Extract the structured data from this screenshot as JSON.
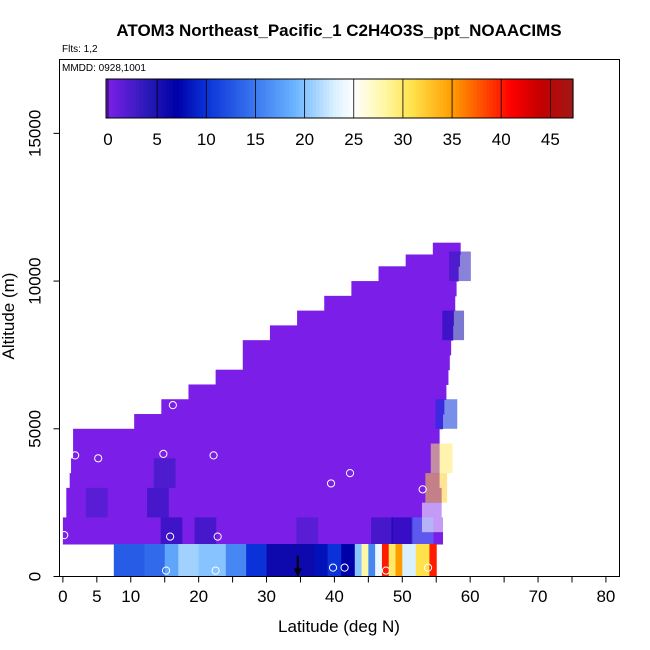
{
  "chart_data": {
    "type": "heatmap",
    "title": "ATOM3 Northeast_Pacific_1 C2H4O3S_ppt_NOAACIMS",
    "subtitle": "Flts: 1,2",
    "annotation": "MMDD: 0928,1001",
    "xlabel": "Latitude (deg N)",
    "ylabel": "Altitude (m)",
    "xlim": [
      -0.5,
      82
    ],
    "ylim": [
      0,
      17500
    ],
    "x_ticks": [
      0,
      5,
      10,
      20,
      30,
      40,
      50,
      60,
      70,
      80
    ],
    "y_ticks": [
      0,
      5000,
      10000,
      15000
    ],
    "grid": false,
    "colorbar": {
      "ticks": [
        0,
        5,
        10,
        15,
        20,
        25,
        30,
        35,
        40,
        45
      ],
      "range": [
        -0.2,
        47.3
      ],
      "placement": "top-inside",
      "stops": [
        {
          "value": 0,
          "color": "#7b1fe8"
        },
        {
          "value": 4,
          "color": "#2a1ab8"
        },
        {
          "value": 7,
          "color": "#0000a8"
        },
        {
          "value": 10,
          "color": "#0a32d8"
        },
        {
          "value": 15,
          "color": "#3b78f0"
        },
        {
          "value": 19,
          "color": "#6ab4ff"
        },
        {
          "value": 23,
          "color": "#d8f0ff"
        },
        {
          "value": 25,
          "color": "#ffffff"
        },
        {
          "value": 28,
          "color": "#fff8a8"
        },
        {
          "value": 31,
          "color": "#ffe14a"
        },
        {
          "value": 35,
          "color": "#ff9d00"
        },
        {
          "value": 38,
          "color": "#ff5000"
        },
        {
          "value": 41,
          "color": "#ff0000"
        },
        {
          "value": 44,
          "color": "#c40000"
        },
        {
          "value": 47.3,
          "color": "#a01818"
        }
      ]
    },
    "background_color": "#7b1fe8",
    "field_region": [
      {
        "alt": 1100,
        "lat_min": 0,
        "lat_max": 56
      },
      {
        "alt": 1500,
        "lat_min": 0,
        "lat_max": 56
      },
      {
        "alt": 2000,
        "lat_min": 0.5,
        "lat_max": 55.8
      },
      {
        "alt": 2500,
        "lat_min": 0.5,
        "lat_max": 55.8
      },
      {
        "alt": 3000,
        "lat_min": 1,
        "lat_max": 55.5
      },
      {
        "alt": 3500,
        "lat_min": 1.2,
        "lat_max": 55.5
      },
      {
        "alt": 4000,
        "lat_min": 1.5,
        "lat_max": 55.5
      },
      {
        "alt": 4500,
        "lat_min": 1.5,
        "lat_max": 55.5
      },
      {
        "alt": 5000,
        "lat_min": 10.5,
        "lat_max": 56
      },
      {
        "alt": 5500,
        "lat_min": 14.5,
        "lat_max": 56.2
      },
      {
        "alt": 6000,
        "lat_min": 18.5,
        "lat_max": 56.5
      },
      {
        "alt": 6500,
        "lat_min": 22.5,
        "lat_max": 56.8
      },
      {
        "alt": 7000,
        "lat_min": 26.5,
        "lat_max": 57
      },
      {
        "alt": 7500,
        "lat_min": 26.5,
        "lat_max": 57.2
      },
      {
        "alt": 8000,
        "lat_min": 30.5,
        "lat_max": 57.5
      },
      {
        "alt": 8500,
        "lat_min": 34.5,
        "lat_max": 57.6
      },
      {
        "alt": 9000,
        "lat_min": 38.5,
        "lat_max": 57.8
      },
      {
        "alt": 9500,
        "lat_min": 42.5,
        "lat_max": 58
      },
      {
        "alt": 10000,
        "lat_min": 46.5,
        "lat_max": 58.3
      },
      {
        "alt": 10500,
        "lat_min": 50.5,
        "lat_max": 58.5
      },
      {
        "alt": 10900,
        "lat_min": 54.5,
        "lat_max": 58.6
      }
    ],
    "low_layer_values": [
      {
        "lat": 7.5,
        "value": 13
      },
      {
        "lat": 12,
        "value": 14
      },
      {
        "lat": 15,
        "value": 18
      },
      {
        "lat": 17,
        "value": 21
      },
      {
        "lat": 20,
        "value": 20
      },
      {
        "lat": 24,
        "value": 16
      },
      {
        "lat": 27,
        "value": 10
      },
      {
        "lat": 30,
        "value": 6
      },
      {
        "lat": 34,
        "value": 6
      },
      {
        "lat": 37,
        "value": 8
      },
      {
        "lat": 39,
        "value": 10
      },
      {
        "lat": 41,
        "value": 7
      },
      {
        "lat": 43,
        "value": 20
      },
      {
        "lat": 44,
        "value": 28
      },
      {
        "lat": 45,
        "value": 16
      },
      {
        "lat": 46,
        "value": 24
      },
      {
        "lat": 47,
        "value": 40
      },
      {
        "lat": 48,
        "value": 30
      },
      {
        "lat": 49,
        "value": 35
      },
      {
        "lat": 50,
        "value": 23
      },
      {
        "lat": 52,
        "value": 31
      },
      {
        "lat": 54,
        "value": 40
      }
    ],
    "column_values": [
      {
        "lat": 5,
        "alt": 2500,
        "value": 3
      },
      {
        "lat": 14,
        "alt": 2500,
        "value": 5
      },
      {
        "lat": 15,
        "alt": 3500,
        "value": 4
      },
      {
        "lat": 16,
        "alt": 1500,
        "value": 6
      },
      {
        "lat": 21,
        "alt": 1500,
        "value": 5
      },
      {
        "lat": 36,
        "alt": 1500,
        "value": 3
      },
      {
        "lat": 47,
        "alt": 1500,
        "value": 5
      },
      {
        "lat": 50,
        "alt": 1500,
        "value": 7
      },
      {
        "lat": 53,
        "alt": 1500,
        "value": 16
      },
      {
        "lat": 54.5,
        "alt": 2000,
        "value": 25
      },
      {
        "lat": 55,
        "alt": 3000,
        "value": 32
      },
      {
        "lat": 55.8,
        "alt": 4000,
        "value": 30
      },
      {
        "lat": 56.5,
        "alt": 5500,
        "value": 10
      },
      {
        "lat": 57.5,
        "alt": 8500,
        "value": 6
      },
      {
        "lat": 58.5,
        "alt": 10500,
        "value": 4
      }
    ],
    "points": [
      {
        "lat": 0.2,
        "alt": 1400
      },
      {
        "lat": 1.8,
        "alt": 4100
      },
      {
        "lat": 5.2,
        "alt": 4000
      },
      {
        "lat": 14.8,
        "alt": 4150
      },
      {
        "lat": 16.2,
        "alt": 5800
      },
      {
        "lat": 15.8,
        "alt": 1350
      },
      {
        "lat": 15.2,
        "alt": 200
      },
      {
        "lat": 22.2,
        "alt": 4100
      },
      {
        "lat": 22.8,
        "alt": 1350
      },
      {
        "lat": 22.5,
        "alt": 200
      },
      {
        "lat": 39.5,
        "alt": 3150
      },
      {
        "lat": 41.5,
        "alt": 300
      },
      {
        "lat": 42.3,
        "alt": 3500
      },
      {
        "lat": 47.6,
        "alt": 200
      },
      {
        "lat": 53,
        "alt": 2950
      },
      {
        "lat": 53.8,
        "alt": 300
      },
      {
        "lat": 39.8,
        "alt": 300
      }
    ],
    "marker": {
      "type": "arrow-down",
      "lat": 34.6,
      "alt_top": 700,
      "alt_bottom": 0
    }
  }
}
